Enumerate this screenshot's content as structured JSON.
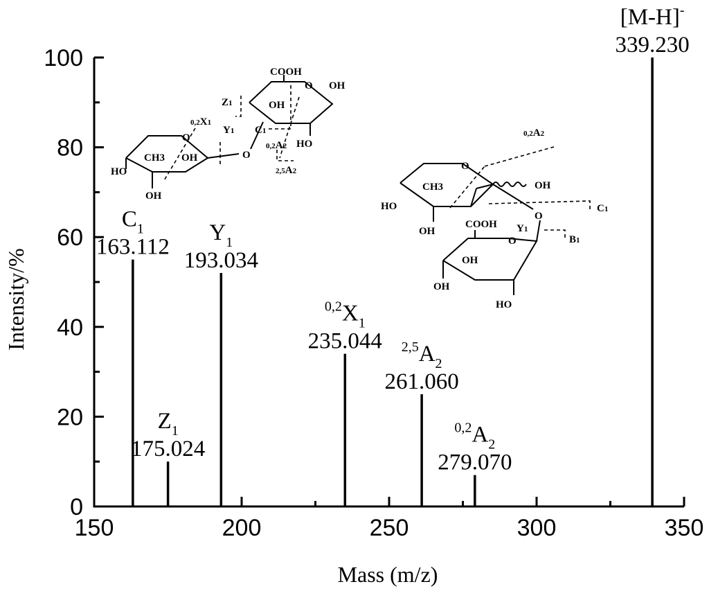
{
  "chart_data": {
    "type": "bar",
    "xlabel": "Mass (m/z)",
    "ylabel": "Intensity/%",
    "xlim": [
      150,
      350
    ],
    "ylim": [
      0,
      100
    ],
    "x_ticks": [
      "150",
      "200",
      "250",
      "300",
      "350"
    ],
    "y_ticks": [
      "0",
      "20",
      "40",
      "60",
      "80",
      "100"
    ],
    "peaks": [
      {
        "mz": 163.112,
        "intensity": 55,
        "ion": "C",
        "sub": "1",
        "sup": "",
        "value_label": "163.112"
      },
      {
        "mz": 175.024,
        "intensity": 10,
        "ion": "Z",
        "sub": "1",
        "sup": "",
        "value_label": "175.024"
      },
      {
        "mz": 193.034,
        "intensity": 52,
        "ion": "Y",
        "sub": "1",
        "sup": "",
        "value_label": "193.034"
      },
      {
        "mz": 235.044,
        "intensity": 34,
        "ion": "X",
        "sub": "1",
        "sup": "0,2",
        "value_label": "235.044"
      },
      {
        "mz": 261.06,
        "intensity": 25,
        "ion": "A",
        "sub": "2",
        "sup": "2,5",
        "value_label": "261.060"
      },
      {
        "mz": 279.07,
        "intensity": 7,
        "ion": "A",
        "sub": "2",
        "sup": "0,2",
        "value_label": "279.070"
      },
      {
        "mz": 339.23,
        "intensity": 100,
        "ion": "[M-H]",
        "sub": "",
        "sup": "-",
        "value_label": "339.230"
      }
    ]
  },
  "structures": {
    "left": {
      "cooh": "COOH",
      "oh": "OH",
      "ho": "HO",
      "ch3": "CH3",
      "o": "O",
      "fragments": [
        "Z1",
        "0,2X1",
        "Y1",
        "C1",
        "0,2A2",
        "2,5A2"
      ]
    },
    "right": {
      "cooh": "COOH",
      "oh": "OH",
      "ho": "HO",
      "ch3": "CH3",
      "o": "O",
      "fragments": [
        "0,2A2",
        "C1",
        "Y1",
        "B1"
      ]
    }
  }
}
